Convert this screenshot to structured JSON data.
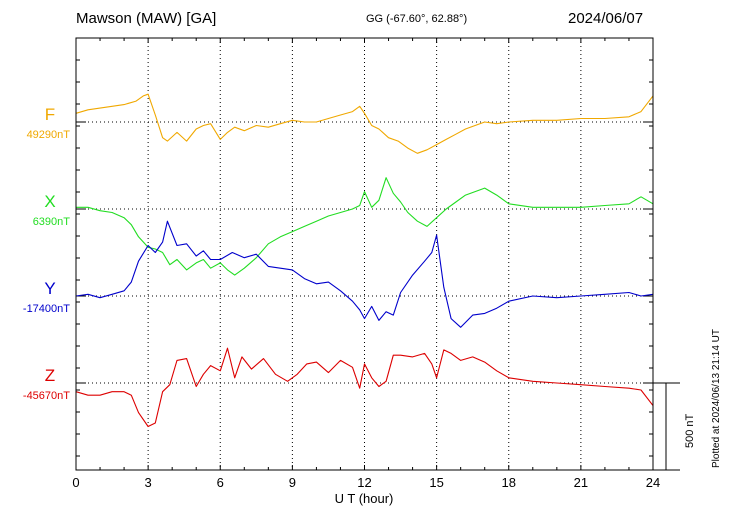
{
  "header": {
    "station": "Mawson (MAW)  [GA]",
    "coords": "GG (-67.60°,  62.88°)",
    "date": "2024/06/07"
  },
  "footer": {
    "plotted": "Plotted at 2024/06/13 21:14 UT"
  },
  "colors": {
    "F": "#f0a800",
    "X": "#22dd22",
    "Y": "#0000cc",
    "Z": "#dd0000"
  },
  "chart_data": {
    "type": "line",
    "xlabel": "U T (hour)",
    "xlim": [
      0,
      24
    ],
    "xticks": [
      "0",
      "3",
      "6",
      "9",
      "12",
      "15",
      "18",
      "21",
      "24"
    ],
    "grid": true,
    "scale_bar": {
      "value": 500,
      "label": "500 nT"
    },
    "series": [
      {
        "name": "F",
        "baseline_label": "49290nT",
        "baseline": 49290,
        "x": [
          0,
          0.5,
          1,
          1.5,
          2,
          2.5,
          2.8,
          3.0,
          3.3,
          3.6,
          3.8,
          4.2,
          4.6,
          5.0,
          5.3,
          5.6,
          6.0,
          6.3,
          6.6,
          7.0,
          7.5,
          8,
          8.5,
          9,
          9.5,
          10,
          10.5,
          11,
          11.5,
          11.8,
          12.0,
          12.3,
          12.6,
          13,
          13.4,
          13.8,
          14.2,
          14.6,
          15.0,
          15.4,
          15.8,
          16.2,
          16.6,
          17,
          17.5,
          18,
          19,
          20,
          21,
          22,
          23,
          23.5,
          24
        ],
        "y": [
          49340,
          49360,
          49370,
          49380,
          49390,
          49410,
          49440,
          49450,
          49330,
          49200,
          49180,
          49230,
          49180,
          49250,
          49270,
          49280,
          49190,
          49230,
          49260,
          49240,
          49270,
          49260,
          49280,
          49300,
          49290,
          49290,
          49310,
          49330,
          49350,
          49380,
          49340,
          49270,
          49250,
          49200,
          49180,
          49140,
          49110,
          49130,
          49160,
          49190,
          49220,
          49250,
          49270,
          49290,
          49280,
          49290,
          49300,
          49300,
          49310,
          49310,
          49320,
          49350,
          49440
        ]
      },
      {
        "name": "X",
        "baseline_label": "6390nT",
        "baseline": 6390,
        "x": [
          0,
          0.5,
          1,
          1.5,
          2,
          2.3,
          2.6,
          3.0,
          3.3,
          3.6,
          3.9,
          4.2,
          4.6,
          5.0,
          5.3,
          5.6,
          6.0,
          6.3,
          6.6,
          7.0,
          7.5,
          8,
          8.5,
          9,
          9.5,
          10,
          10.5,
          11,
          11.5,
          11.8,
          12.0,
          12.3,
          12.6,
          12.9,
          13.2,
          13.5,
          13.8,
          14.2,
          14.6,
          15.0,
          15.4,
          15.8,
          16.2,
          16.6,
          17,
          17.5,
          18,
          19,
          20,
          21,
          22,
          23,
          23.5,
          24
        ],
        "y": [
          6400,
          6400,
          6380,
          6370,
          6340,
          6300,
          6230,
          6170,
          6160,
          6140,
          6070,
          6100,
          6040,
          6080,
          6100,
          6050,
          6080,
          6040,
          6010,
          6050,
          6110,
          6190,
          6230,
          6260,
          6290,
          6320,
          6350,
          6370,
          6390,
          6410,
          6490,
          6400,
          6440,
          6570,
          6480,
          6430,
          6370,
          6320,
          6290,
          6340,
          6390,
          6430,
          6470,
          6490,
          6510,
          6470,
          6420,
          6400,
          6400,
          6400,
          6410,
          6420,
          6460,
          6420
        ]
      },
      {
        "name": "Y",
        "baseline_label": "-17400nT",
        "baseline": -17400,
        "x": [
          0,
          0.5,
          1,
          1.5,
          2,
          2.3,
          2.6,
          3.0,
          3.3,
          3.6,
          3.8,
          4.2,
          4.6,
          5.0,
          5.3,
          5.6,
          6.0,
          6.5,
          7,
          7.5,
          8,
          8.5,
          9,
          9.5,
          10,
          10.5,
          11,
          11.5,
          11.8,
          12.0,
          12.3,
          12.6,
          12.9,
          13.2,
          13.5,
          14,
          14.5,
          14.8,
          15.0,
          15.3,
          15.6,
          16,
          16.5,
          17,
          17.5,
          18,
          19,
          20,
          21,
          22,
          23,
          23.5,
          24
        ],
        "y": [
          -17400,
          -17390,
          -17410,
          -17390,
          -17370,
          -17320,
          -17200,
          -17110,
          -17150,
          -17090,
          -16970,
          -17110,
          -17100,
          -17170,
          -17140,
          -17190,
          -17190,
          -17150,
          -17180,
          -17160,
          -17230,
          -17240,
          -17250,
          -17300,
          -17330,
          -17320,
          -17370,
          -17430,
          -17480,
          -17530,
          -17460,
          -17540,
          -17490,
          -17510,
          -17380,
          -17280,
          -17200,
          -17150,
          -17050,
          -17350,
          -17530,
          -17580,
          -17510,
          -17500,
          -17470,
          -17430,
          -17400,
          -17410,
          -17400,
          -17390,
          -17380,
          -17400,
          -17390
        ]
      },
      {
        "name": "Z",
        "baseline_label": "-45670nT",
        "baseline": -45670,
        "x": [
          0,
          0.5,
          1,
          1.5,
          2,
          2.3,
          2.6,
          3.0,
          3.3,
          3.6,
          3.9,
          4.2,
          4.6,
          5.0,
          5.3,
          5.6,
          6.0,
          6.3,
          6.6,
          6.9,
          7.3,
          7.8,
          8.3,
          8.8,
          9.2,
          9.6,
          10,
          10.5,
          11,
          11.5,
          11.8,
          12.0,
          12.3,
          12.6,
          12.9,
          13.2,
          13.5,
          14,
          14.5,
          14.8,
          15.0,
          15.3,
          15.6,
          16,
          16.5,
          17,
          17.5,
          18,
          19,
          20,
          21,
          22,
          23,
          23.5,
          24
        ],
        "y": [
          -45720,
          -45740,
          -45740,
          -45720,
          -45720,
          -45740,
          -45840,
          -45920,
          -45900,
          -45720,
          -45680,
          -45540,
          -45530,
          -45690,
          -45620,
          -45570,
          -45600,
          -45470,
          -45640,
          -45520,
          -45590,
          -45530,
          -45620,
          -45660,
          -45620,
          -45560,
          -45550,
          -45610,
          -45540,
          -45580,
          -45700,
          -45560,
          -45640,
          -45690,
          -45660,
          -45510,
          -45510,
          -45520,
          -45500,
          -45560,
          -45640,
          -45480,
          -45500,
          -45540,
          -45520,
          -45550,
          -45600,
          -45640,
          -45660,
          -45670,
          -45680,
          -45690,
          -45700,
          -45710,
          -45800
        ]
      }
    ]
  }
}
